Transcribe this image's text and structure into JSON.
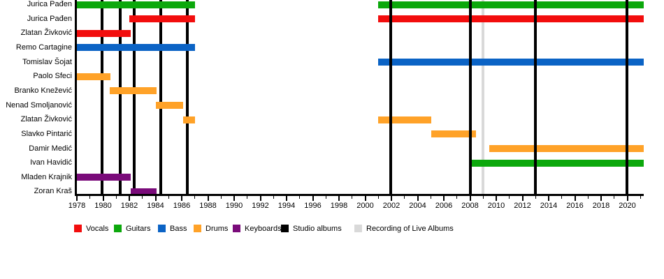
{
  "chart_data": {
    "type": "timeline-gantt",
    "description": "Band members timeline with instrument tenures and album release markers",
    "x_axis": {
      "start": 1978,
      "end": 2021.25,
      "tick_years": [
        1978,
        1980,
        1982,
        1984,
        1986,
        1988,
        1990,
        1992,
        1994,
        1996,
        1998,
        2000,
        2002,
        2004,
        2006,
        2008,
        2010,
        2012,
        2014,
        2016,
        2018,
        2020
      ],
      "minor_tick_every": 1,
      "grid": false
    },
    "rows": [
      {
        "name": "Jurica Pađen",
        "role": "Guitars",
        "color": "guitars",
        "intervals": [
          [
            1978,
            1987
          ],
          [
            2001,
            2021.25
          ]
        ]
      },
      {
        "name": "Jurica Pađen",
        "role": "Vocals",
        "color": "vocals",
        "intervals": [
          [
            1982,
            1987
          ],
          [
            2001,
            2021.25
          ]
        ]
      },
      {
        "name": "Zlatan Živković",
        "role": "Vocals",
        "color": "vocals",
        "intervals": [
          [
            1978,
            1982.1
          ]
        ]
      },
      {
        "name": "Remo Cartagine",
        "role": "Bass",
        "color": "bass",
        "intervals": [
          [
            1978,
            1987
          ]
        ]
      },
      {
        "name": "Tomislav Šojat",
        "role": "Bass",
        "color": "bass",
        "intervals": [
          [
            2001,
            2021.25
          ]
        ]
      },
      {
        "name": "Paolo Sfeci",
        "role": "Drums",
        "color": "drums",
        "intervals": [
          [
            1978,
            1980.55
          ]
        ]
      },
      {
        "name": "Branko Knežević",
        "role": "Drums",
        "color": "drums",
        "intervals": [
          [
            1980.5,
            1984.1
          ]
        ]
      },
      {
        "name": "Nenad Smoljanović",
        "role": "Drums",
        "color": "drums",
        "intervals": [
          [
            1984.05,
            1986.1
          ]
        ]
      },
      {
        "name": "Zlatan Živković",
        "role": "Drums",
        "color": "drums",
        "intervals": [
          [
            1986.1,
            1987
          ],
          [
            2001,
            2005.05
          ]
        ]
      },
      {
        "name": "Slavko Pintarić",
        "role": "Drums",
        "color": "drums",
        "intervals": [
          [
            2005.05,
            2008.45
          ]
        ]
      },
      {
        "name": "Damir Medić",
        "role": "Drums",
        "color": "drums",
        "intervals": [
          [
            2009.45,
            2021.25
          ]
        ]
      },
      {
        "name": "Ivan Havidić",
        "role": "Guitars",
        "color": "guitars",
        "intervals": [
          [
            2008.1,
            2021.25
          ]
        ]
      },
      {
        "name": "Mladen Krajnik",
        "role": "Keyboards",
        "color": "keyboards",
        "intervals": [
          [
            1978,
            1982.1
          ]
        ]
      },
      {
        "name": "Zoran Kraš",
        "role": "Keyboards",
        "color": "keyboards",
        "intervals": [
          [
            1982.1,
            1984.1
          ]
        ]
      }
    ],
    "events": {
      "studio_album_years": [
        1979.9,
        1981.3,
        1982.35,
        1984.4,
        1986.4,
        2001.95,
        2008.0,
        2013.0,
        2019.95
      ],
      "live_recording_years": [
        2009.0
      ]
    },
    "legend": [
      {
        "label": "Vocals",
        "color_key": "vocals"
      },
      {
        "label": "Guitars",
        "color_key": "guitars"
      },
      {
        "label": "Bass",
        "color_key": "bass"
      },
      {
        "label": "Drums",
        "color_key": "drums"
      },
      {
        "label": "Keyboards",
        "color_key": "keyboards"
      },
      {
        "label": "Studio albums",
        "color_key": "studio_album"
      },
      {
        "label": "Recording of Live Albums",
        "color_key": "live_recording"
      }
    ],
    "colors": {
      "vocals": "#f20d0d",
      "guitars": "#0ca80c",
      "bass": "#0b63c5",
      "drums": "#ffa228",
      "keyboards": "#7a0b7a",
      "studio_album": "#000000",
      "live_recording": "#d9d9d9"
    }
  }
}
